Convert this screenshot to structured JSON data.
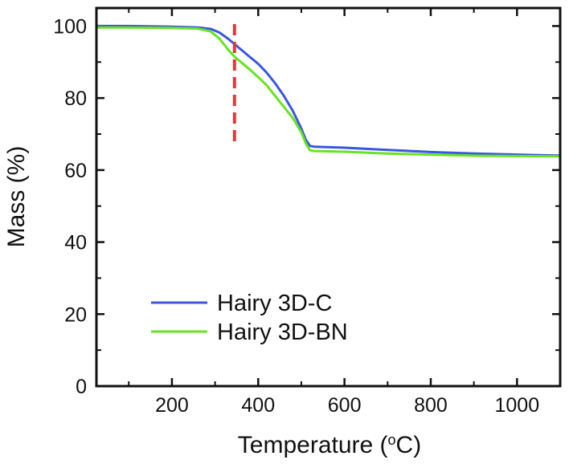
{
  "chart_data": {
    "type": "line",
    "xlabel": "Temperature (°C)",
    "xlabel_prefix": "Temperature (",
    "xlabel_degree": "o",
    "xlabel_suffix": "C)",
    "ylabel": "Mass (%)",
    "xlim": [
      25,
      1100
    ],
    "ylim": [
      0,
      105
    ],
    "x_ticks": [
      200,
      400,
      600,
      800,
      1000
    ],
    "x_tick_labels": [
      "200",
      "400",
      "600",
      "800",
      "1000"
    ],
    "y_ticks": [
      0,
      20,
      40,
      60,
      80,
      100
    ],
    "y_tick_labels": [
      "0",
      "20",
      "40",
      "60",
      "80",
      "100"
    ],
    "legend_position": "lower-left",
    "series": [
      {
        "name": "Hairy 3D-C",
        "color": "#3b56e0",
        "x": [
          25,
          100,
          200,
          260,
          290,
          310,
          330,
          345,
          360,
          380,
          400,
          420,
          440,
          460,
          480,
          500,
          510,
          520,
          530,
          600,
          700,
          800,
          900,
          1000,
          1100
        ],
        "y": [
          100,
          100,
          99.8,
          99.6,
          99.2,
          98.2,
          96.5,
          95,
          93.5,
          91.5,
          89.5,
          87,
          84,
          80.5,
          76.5,
          71.5,
          68.5,
          66.7,
          66.5,
          66.2,
          65.6,
          65,
          64.6,
          64.3,
          64
        ]
      },
      {
        "name": "Hairy 3D-BN",
        "color": "#66e51f",
        "x": [
          25,
          100,
          200,
          260,
          290,
          310,
          330,
          345,
          360,
          380,
          400,
          420,
          440,
          460,
          480,
          500,
          510,
          520,
          530,
          600,
          700,
          800,
          900,
          1000,
          1100
        ],
        "y": [
          99.6,
          99.6,
          99.5,
          99.3,
          98.5,
          96.5,
          93.5,
          91.5,
          90,
          88,
          85.8,
          83.5,
          80.5,
          77.5,
          74.5,
          70.5,
          67.5,
          65.5,
          65.3,
          65.1,
          64.6,
          64.3,
          64,
          63.9,
          63.8
        ]
      }
    ],
    "annotations": [
      {
        "type": "vertical-dashed-line",
        "x": 345,
        "y_from": 68,
        "y_to": 102,
        "color": "#e8343a"
      }
    ]
  }
}
